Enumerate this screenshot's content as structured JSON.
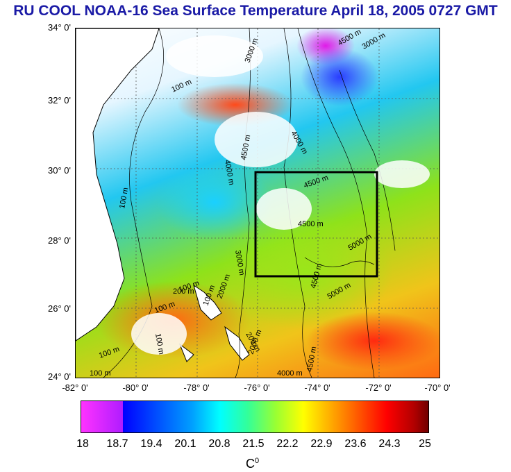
{
  "header": {
    "title": "RU COOL  NOAA-16 Sea Surface Temperature April 18, 2005 0727 GMT"
  },
  "map": {
    "lat_ticks": [
      "34° 0'",
      "32° 0'",
      "30° 0'",
      "28° 0'",
      "26° 0'",
      "24° 0'"
    ],
    "lon_ticks": [
      "-82° 0'",
      "-80° 0'",
      "-78° 0'",
      "-76° 0'",
      "-74° 0'",
      "-72° 0'",
      "-70° 0'"
    ],
    "lat_range": [
      24,
      34
    ],
    "lon_range": [
      -82,
      -70
    ],
    "study_box": {
      "lon": [
        -76,
        -72
      ],
      "lat": [
        27,
        30
      ]
    },
    "contour_labels": [
      "3000 m",
      "4500 m",
      "100 m",
      "3000 m",
      "4000 m",
      "4500 m",
      "4000 m",
      "100 m",
      "4500 m",
      "4500 m",
      "5000 m",
      "3000 m",
      "4500 m",
      "100 m",
      "2000 m",
      "100 m",
      "200 m",
      "100 m",
      "200 m",
      "100 m",
      "2000 m",
      "5000 m",
      "4500 m",
      "4000 m",
      "100 m",
      "100 m"
    ]
  },
  "colorbar": {
    "labels": [
      "18",
      "18.7",
      "19.4",
      "20.1",
      "20.8",
      "21.5",
      "22.2",
      "22.9",
      "23.6",
      "24.3",
      "25"
    ],
    "unit": "C",
    "unit_sup": "0",
    "range": [
      18,
      25
    ]
  },
  "colors": {
    "title": "#1a1aa6",
    "box": "#000000"
  }
}
